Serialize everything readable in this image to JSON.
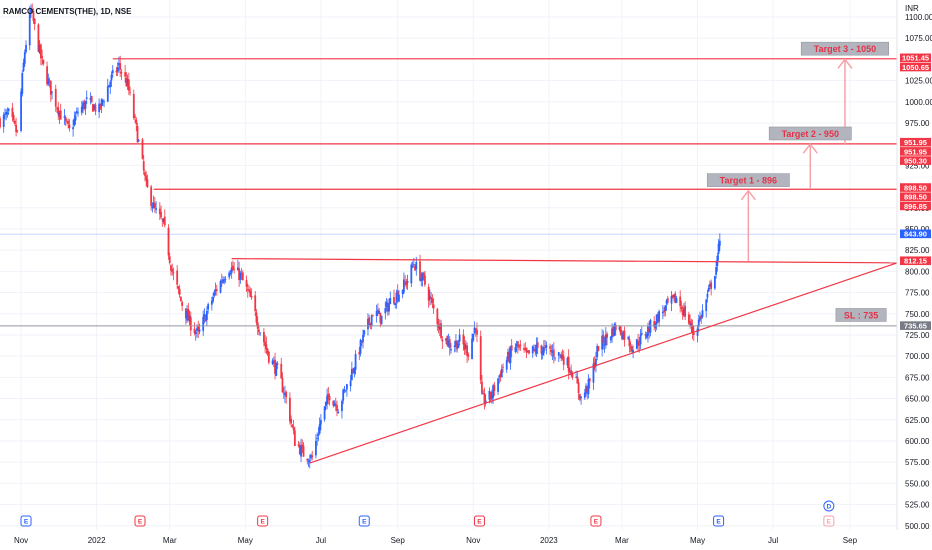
{
  "chart_data": {
    "type": "candlestick",
    "title": "RAMCO CEMENTS(THE), 1D, NSE",
    "currency": "INR",
    "colors": {
      "up": "#2962ff",
      "down": "#f23645",
      "line": "#f23645",
      "arrow": "#f7a1a9",
      "sl": "#9598a1",
      "grid": "#f0f3fa"
    },
    "ylim": [
      495,
      1120
    ],
    "y_ticks": [
      "500.00",
      "525.00",
      "550.00",
      "575.00",
      "600.00",
      "625.00",
      "650.00",
      "675.00",
      "700.00",
      "725.00",
      "750.00",
      "775.00",
      "800.00",
      "825.00",
      "850.00",
      "875.00",
      "925.00",
      "975.00",
      "1000.00",
      "1025.00",
      "1075.00",
      "1100.00"
    ],
    "x_ticks": [
      "Nov",
      "2022",
      "Mar",
      "May",
      "Jul",
      "Sep",
      "Nov",
      "2023",
      "Mar",
      "May",
      "Jul",
      "Sep"
    ],
    "x_range": [
      "2021-10-15",
      "2023-10-09"
    ],
    "x_ticks_dates": [
      "2021-11-01",
      "2022-01-01",
      "2022-03-01",
      "2022-05-01",
      "2022-07-01",
      "2022-09-01",
      "2022-11-01",
      "2023-01-01",
      "2023-03-01",
      "2023-05-01",
      "2023-07-01",
      "2023-09-01"
    ],
    "price_path": [
      [
        "2021-10-15",
        978
      ],
      [
        "2021-10-22",
        985
      ],
      [
        "2021-10-29",
        962
      ],
      [
        "2021-11-04",
        1060
      ],
      [
        "2021-11-09",
        1108
      ],
      [
        "2021-11-18",
        1045
      ],
      [
        "2021-11-26",
        1010
      ],
      [
        "2021-12-03",
        985
      ],
      [
        "2021-12-10",
        965
      ],
      [
        "2021-12-17",
        988
      ],
      [
        "2021-12-24",
        1000
      ],
      [
        "2022-01-03",
        990
      ],
      [
        "2022-01-12",
        1025
      ],
      [
        "2022-01-19",
        1042
      ],
      [
        "2022-01-26",
        1020
      ],
      [
        "2022-02-03",
        960
      ],
      [
        "2022-02-10",
        900
      ],
      [
        "2022-02-17",
        872
      ],
      [
        "2022-02-24",
        855
      ],
      [
        "2022-03-03",
        800
      ],
      [
        "2022-03-10",
        765
      ],
      [
        "2022-03-17",
        740
      ],
      [
        "2022-03-24",
        725
      ],
      [
        "2022-03-31",
        752
      ],
      [
        "2022-04-08",
        780
      ],
      [
        "2022-04-18",
        805
      ],
      [
        "2022-04-27",
        795
      ],
      [
        "2022-05-05",
        768
      ],
      [
        "2022-05-12",
        735
      ],
      [
        "2022-05-20",
        700
      ],
      [
        "2022-05-27",
        682
      ],
      [
        "2022-06-03",
        650
      ],
      [
        "2022-06-10",
        600
      ],
      [
        "2022-06-17",
        585
      ],
      [
        "2022-06-24",
        580
      ],
      [
        "2022-07-01",
        625
      ],
      [
        "2022-07-08",
        655
      ],
      [
        "2022-07-15",
        640
      ],
      [
        "2022-07-22",
        665
      ],
      [
        "2022-07-29",
        695
      ],
      [
        "2022-08-05",
        725
      ],
      [
        "2022-08-12",
        752
      ],
      [
        "2022-08-19",
        745
      ],
      [
        "2022-08-26",
        765
      ],
      [
        "2022-09-02",
        775
      ],
      [
        "2022-09-09",
        790
      ],
      [
        "2022-09-14",
        810
      ],
      [
        "2022-09-23",
        785
      ],
      [
        "2022-09-30",
        755
      ],
      [
        "2022-10-07",
        725
      ],
      [
        "2022-10-14",
        712
      ],
      [
        "2022-10-21",
        718
      ],
      [
        "2022-10-28",
        705
      ],
      [
        "2022-11-03",
        738
      ],
      [
        "2022-11-08",
        648
      ],
      [
        "2022-11-15",
        652
      ],
      [
        "2022-11-25",
        688
      ],
      [
        "2022-12-05",
        712
      ],
      [
        "2022-12-14",
        700
      ],
      [
        "2022-12-23",
        710
      ],
      [
        "2023-01-03",
        705
      ],
      [
        "2023-01-12",
        700
      ],
      [
        "2023-01-20",
        682
      ],
      [
        "2023-01-27",
        650
      ],
      [
        "2023-02-03",
        668
      ],
      [
        "2023-02-10",
        712
      ],
      [
        "2023-02-17",
        722
      ],
      [
        "2023-02-24",
        735
      ],
      [
        "2023-03-03",
        725
      ],
      [
        "2023-03-10",
        710
      ],
      [
        "2023-03-17",
        722
      ],
      [
        "2023-03-24",
        735
      ],
      [
        "2023-03-31",
        748
      ],
      [
        "2023-04-07",
        760
      ],
      [
        "2023-04-14",
        768
      ],
      [
        "2023-04-21",
        750
      ],
      [
        "2023-04-28",
        727
      ],
      [
        "2023-05-05",
        752
      ],
      [
        "2023-05-10",
        775
      ],
      [
        "2023-05-15",
        800
      ],
      [
        "2023-05-17",
        812
      ],
      [
        "2023-05-19",
        842
      ]
    ],
    "trendlines": [
      {
        "name": "upper-trendline",
        "x": [
          "2022-04-20",
          "2023-10-09"
        ],
        "y": [
          815,
          810
        ]
      },
      {
        "name": "lower-trendline",
        "x": [
          "2022-06-22",
          "2023-10-09"
        ],
        "y": [
          574,
          810
        ]
      }
    ],
    "horizontal_lines": [
      {
        "name": "level-1050",
        "x_start": "2022-01-14",
        "y": 1050.65
      },
      {
        "name": "level-950",
        "x_start": "2021-10-15",
        "y": 950.3
      },
      {
        "name": "level-896",
        "x_start": "2022-02-16",
        "y": 896.85
      }
    ],
    "arrows": [
      {
        "name": "arrow-to-target-1",
        "x": "2023-06-11",
        "y_from": 812,
        "y_to": 895
      },
      {
        "name": "arrow-to-target-2",
        "x": "2023-07-31",
        "y_from": 897,
        "y_to": 950
      },
      {
        "name": "arrow-to-target-3",
        "x": "2023-08-28",
        "y_from": 950,
        "y_to": 1050
      }
    ],
    "annotations": [
      {
        "name": "target-1-label",
        "text": "Target 1 - 896",
        "x": "2023-06-11",
        "y": 907
      },
      {
        "name": "target-2-label",
        "text": "Target 2 - 950",
        "x": "2023-07-31",
        "y": 962
      },
      {
        "name": "target-3-label",
        "text": "Target 3 - 1050",
        "x": "2023-08-28",
        "y": 1062
      },
      {
        "name": "sl-label",
        "text": "SL : 735",
        "x": "2023-09-10",
        "y": 748
      }
    ],
    "sl_line": {
      "y": 735.65,
      "x_start": "2021-10-15"
    },
    "current_price_line": {
      "y": 843.9
    },
    "price_tags": [
      {
        "value": "1051.45",
        "color": "#f23645"
      },
      {
        "value": "1050.65",
        "color": "#f23645"
      },
      {
        "value": "951.95",
        "color": "#f23645"
      },
      {
        "value": "951.95",
        "color": "#f23645"
      },
      {
        "value": "950.30",
        "color": "#f23645"
      },
      {
        "value": "898.50",
        "color": "#f23645"
      },
      {
        "value": "898.50",
        "color": "#f23645"
      },
      {
        "value": "896.85",
        "color": "#f23645"
      },
      {
        "value": "843.90",
        "color": "#2962ff"
      },
      {
        "value": "812.15",
        "color": "#f23645"
      },
      {
        "value": "735.65",
        "color": "#787b86"
      }
    ],
    "events": [
      {
        "name": "earnings-event",
        "glyph": "E",
        "x": "2021-11-05",
        "color": "#2962ff"
      },
      {
        "name": "earnings-event",
        "glyph": "E",
        "x": "2022-02-05",
        "color": "#f23645"
      },
      {
        "name": "earnings-event",
        "glyph": "E",
        "x": "2022-05-15",
        "color": "#f23645"
      },
      {
        "name": "earnings-event",
        "glyph": "E",
        "x": "2022-08-05",
        "color": "#2962ff"
      },
      {
        "name": "earnings-event",
        "glyph": "E",
        "x": "2022-11-06",
        "color": "#f23645"
      },
      {
        "name": "earnings-event",
        "glyph": "E",
        "x": "2023-02-08",
        "color": "#f23645"
      },
      {
        "name": "earnings-event",
        "glyph": "E",
        "x": "2023-05-18",
        "color": "#2962ff"
      },
      {
        "name": "earnings-event",
        "glyph": "E",
        "x": "2023-08-15",
        "color": "#f7a1a9"
      },
      {
        "name": "dividend-event",
        "glyph": "D",
        "x": "2023-08-15",
        "color": "#2962ff"
      }
    ]
  }
}
